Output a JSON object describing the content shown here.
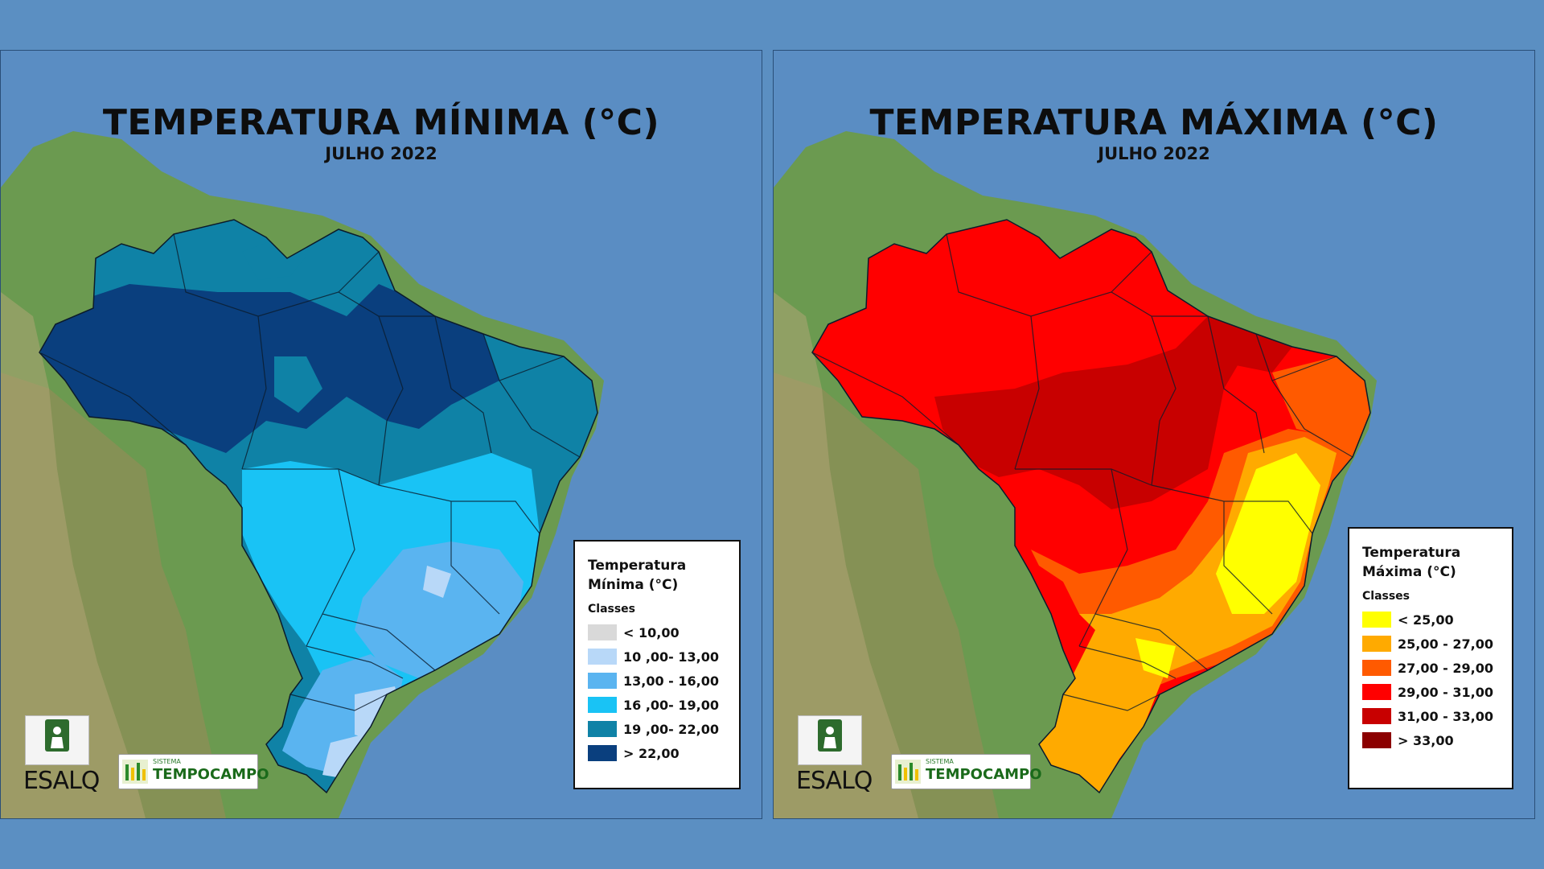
{
  "maps": [
    {
      "title": "TEMPERATURA MÍNIMA (°C)",
      "subtitle": "JULHO 2022",
      "legend": {
        "title_line1": "Temperatura",
        "title_line2": "Mínima (°C)",
        "classes_label": "Classes",
        "classes": [
          {
            "label": "< 10,00",
            "color": "#d9d9d9"
          },
          {
            "label": "10 ,00- 13,00",
            "color": "#b8d8f8"
          },
          {
            "label": "13,00 - 16,00",
            "color": "#5ab4f0"
          },
          {
            "label": "16 ,00- 19,00",
            "color": "#19c3f5"
          },
          {
            "label": "19 ,00- 22,00",
            "color": "#0f82a6"
          },
          {
            "label": "> 22,00",
            "color": "#0a3f7e"
          }
        ]
      }
    },
    {
      "title": "TEMPERATURA MÁXIMA (°C)",
      "subtitle": "JULHO 2022",
      "legend": {
        "title_line1": "Temperatura",
        "title_line2": "Máxima (°C)",
        "classes_label": "Classes",
        "classes": [
          {
            "label": "< 25,00",
            "color": "#ffff00"
          },
          {
            "label": "25,00 - 27,00",
            "color": "#ffaa00"
          },
          {
            "label": "27,00 - 29,00",
            "color": "#ff5a00"
          },
          {
            "label": "29,00 - 31,00",
            "color": "#ff0000"
          },
          {
            "label": "31,00 - 33,00",
            "color": "#c80000"
          },
          {
            "label": "> 33,00",
            "color": "#8b0000"
          }
        ]
      }
    }
  ],
  "logos": {
    "esalq_text": "ESALQ",
    "tempocampo_small": "SISTEMA",
    "tempocampo_big": "TEMPOCAMPO"
  },
  "colors": {
    "ocean": "#5a8dc3",
    "land": "#6e9a4e"
  }
}
